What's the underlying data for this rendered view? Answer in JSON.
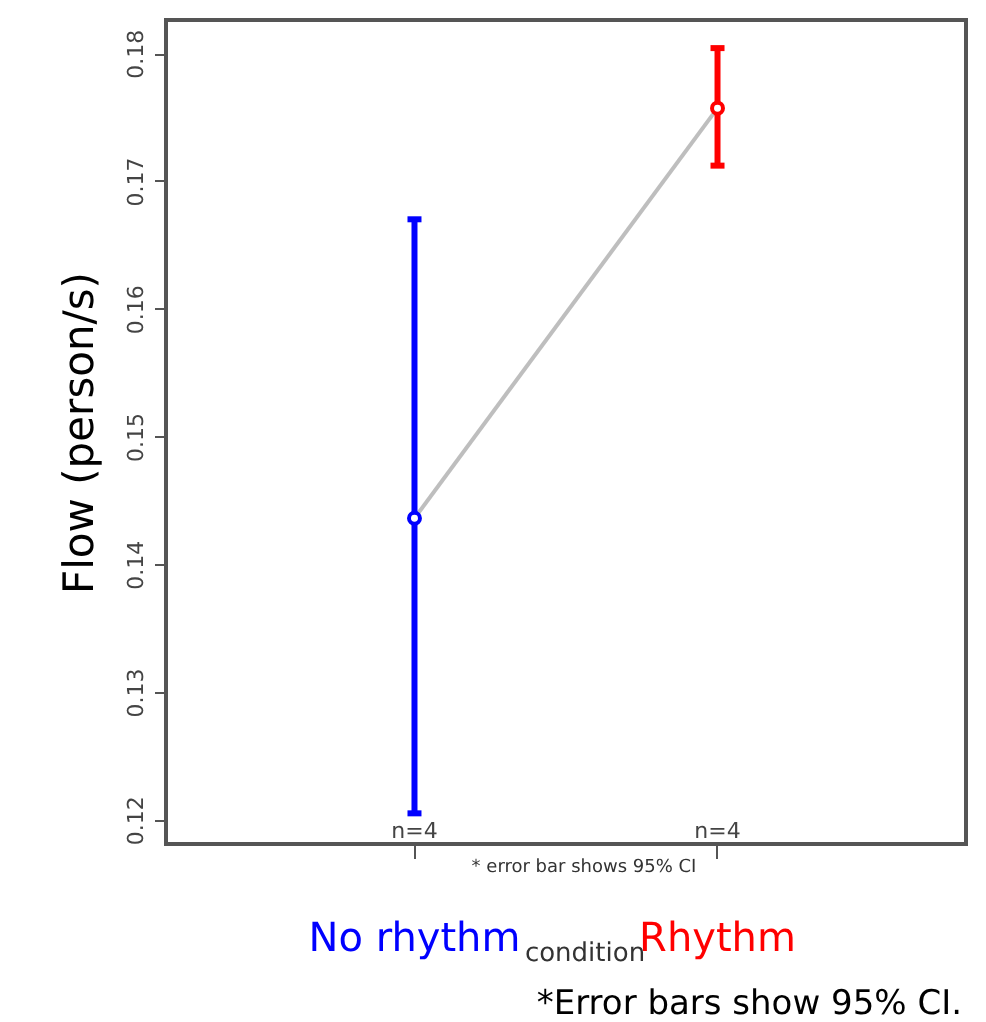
{
  "chart_data": {
    "type": "line",
    "ylabel": "Flow (person/s)",
    "xlabel": "condition",
    "categories": [
      "No rhythm",
      "Rhythm"
    ],
    "values": [
      0.1436,
      0.1757
    ],
    "errors": [
      [
        0.1205,
        0.167
      ],
      [
        0.1712,
        0.1804
      ]
    ],
    "color": "#bebebe",
    "colors": [
      "#0000ff",
      "#ff0000"
    ],
    "marker": "circle",
    "ylim": [
      0.1181,
      0.1826
    ],
    "yticks": [
      0.12,
      0.13,
      0.14,
      0.15,
      0.16,
      0.17,
      0.18
    ],
    "grid": false,
    "legend": false,
    "annotations": [
      "n=4",
      "n=4",
      "* error bar shows 95% CI",
      "*Error bars show 95% CI."
    ]
  }
}
